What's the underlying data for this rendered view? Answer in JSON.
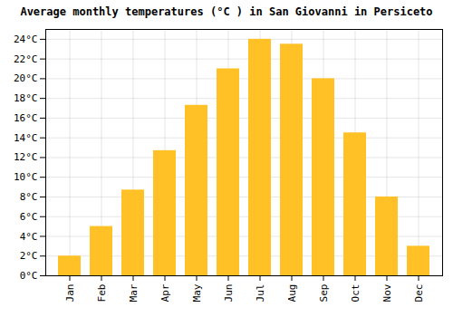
{
  "chart_data": {
    "type": "bar",
    "title": "Average monthly temperatures (°C ) in San Giovanni in Persiceto",
    "categories": [
      "Jan",
      "Feb",
      "Mar",
      "Apr",
      "May",
      "Jun",
      "Jul",
      "Aug",
      "Sep",
      "Oct",
      "Nov",
      "Dec"
    ],
    "values": [
      2.0,
      5.0,
      8.7,
      12.7,
      17.3,
      21.0,
      24.0,
      23.5,
      20.0,
      14.5,
      8.0,
      3.0
    ],
    "color": "#FFC125",
    "ylim": [
      0,
      25
    ],
    "yticks": [
      {
        "value": 0,
        "label": "0°C"
      },
      {
        "value": 2,
        "label": "2°C"
      },
      {
        "value": 4,
        "label": "4°C"
      },
      {
        "value": 6,
        "label": "6°C"
      },
      {
        "value": 8,
        "label": "8°C"
      },
      {
        "value": 10,
        "label": "10°C"
      },
      {
        "value": 12,
        "label": "12°C"
      },
      {
        "value": 14,
        "label": "14°C"
      },
      {
        "value": 16,
        "label": "16°C"
      },
      {
        "value": 18,
        "label": "18°C"
      },
      {
        "value": 20,
        "label": "20°C"
      },
      {
        "value": 22,
        "label": "22°C"
      },
      {
        "value": 24,
        "label": "24°C"
      }
    ],
    "grid": true
  }
}
